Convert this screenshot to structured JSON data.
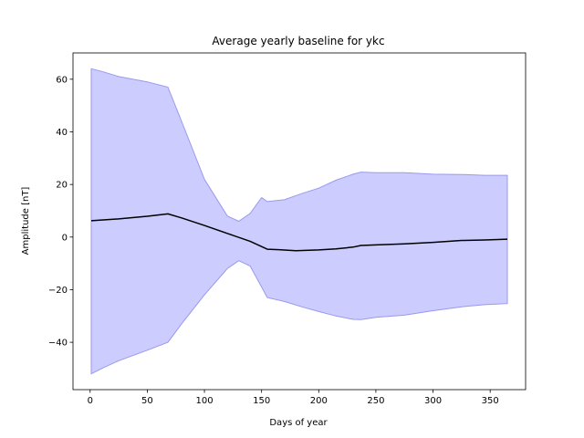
{
  "chart_data": {
    "type": "area",
    "title": "Average yearly baseline for ykc",
    "xlabel": "Days of year",
    "ylabel": "Amplitude [nT]",
    "xlim": [
      -15,
      381
    ],
    "ylim": [
      -58,
      70
    ],
    "xticks": [
      0,
      50,
      100,
      150,
      200,
      250,
      300,
      350
    ],
    "yticks": [
      -40,
      -20,
      0,
      20,
      40,
      60
    ],
    "grid": false,
    "colors": {
      "band_fill": "#ccccff",
      "band_edge": "#9999ee",
      "line": "#000000"
    },
    "band": {
      "x": [
        1,
        10,
        25,
        50,
        68,
        80,
        100,
        120,
        130,
        140,
        150,
        155,
        170,
        185,
        200,
        215,
        230,
        237,
        250,
        275,
        300,
        325,
        345,
        365
      ],
      "upper": [
        64,
        63,
        61,
        59,
        57,
        44,
        22,
        8,
        6,
        9,
        15,
        13.5,
        14.2,
        16.5,
        18.6,
        21.6,
        23.9,
        24.7,
        24.5,
        24.5,
        23.9,
        23.8,
        23.5,
        23.5
      ],
      "lower": [
        -52,
        -50,
        -47,
        -43,
        -40,
        -33,
        -22,
        -12,
        -9,
        -11,
        -19,
        -23,
        -24.5,
        -26.5,
        -28.3,
        -30,
        -31.3,
        -31.4,
        -30.5,
        -29.7,
        -28,
        -26.5,
        -25.7,
        -25.3
      ]
    },
    "series": [
      {
        "x": [
          1,
          10,
          25,
          50,
          68,
          80,
          100,
          120,
          140,
          155,
          165,
          180,
          200,
          215,
          230,
          237,
          250,
          275,
          300,
          325,
          345,
          365
        ],
        "values": [
          6.2,
          6.5,
          6.9,
          7.9,
          8.8,
          7.3,
          4.4,
          1.4,
          -1.6,
          -4.6,
          -4.8,
          -5.2,
          -4.9,
          -4.5,
          -3.8,
          -3.2,
          -3.0,
          -2.6,
          -2.0,
          -1.3,
          -1.1,
          -0.8
        ]
      }
    ]
  }
}
